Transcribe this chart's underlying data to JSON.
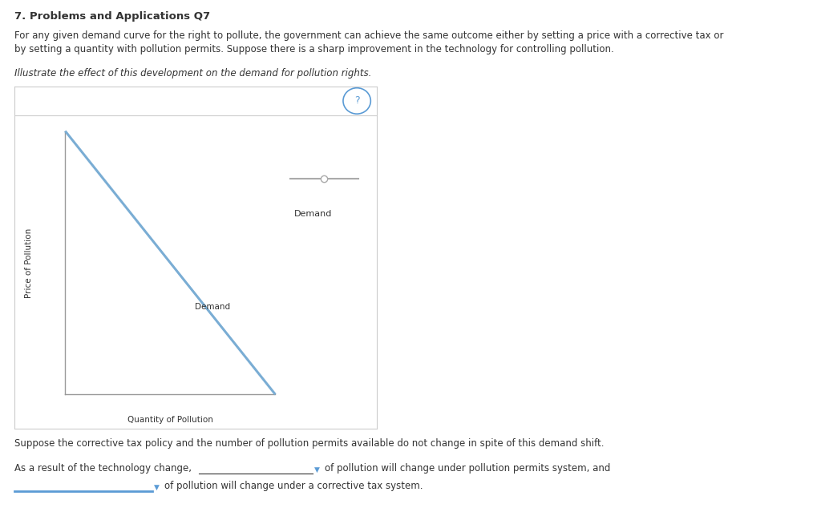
{
  "title": "7. Problems and Applications Q7",
  "para1_line1": "For any given demand curve for the right to pollute, the government can achieve the same outcome either by setting a price with a corrective tax or",
  "para1_line2": "by setting a quantity with pollution permits. Suppose there is a sharp improvement in the technology for controlling pollution.",
  "italic_line": "Illustrate the effect of this development on the demand for pollution rights.",
  "xlabel": "Quantity of Pollution",
  "ylabel": "Price of Pollution",
  "demand_label_on_line": "Demand",
  "demand_label_legend": "Demand",
  "suppose_line": "Suppose the corrective tax policy and the number of pollution permits available do not change in spite of this demand shift.",
  "bottom_as": "As a result of the technology change,",
  "bottom_of1": "of pollution will change under pollution permits system, and",
  "bottom_of2": "of pollution will change under a corrective tax system.",
  "demand_line_color": "#7aadd4",
  "background_color": "#ffffff",
  "box_border_color": "#cccccc",
  "axis_color": "#999999",
  "text_dark": "#333333",
  "text_blue": "#4472c4",
  "legend_line_color": "#aaaaaa",
  "qmark_color": "#5b9bd5",
  "underline_color": "#5b9bd5",
  "arrow_color": "#5b9bd5"
}
